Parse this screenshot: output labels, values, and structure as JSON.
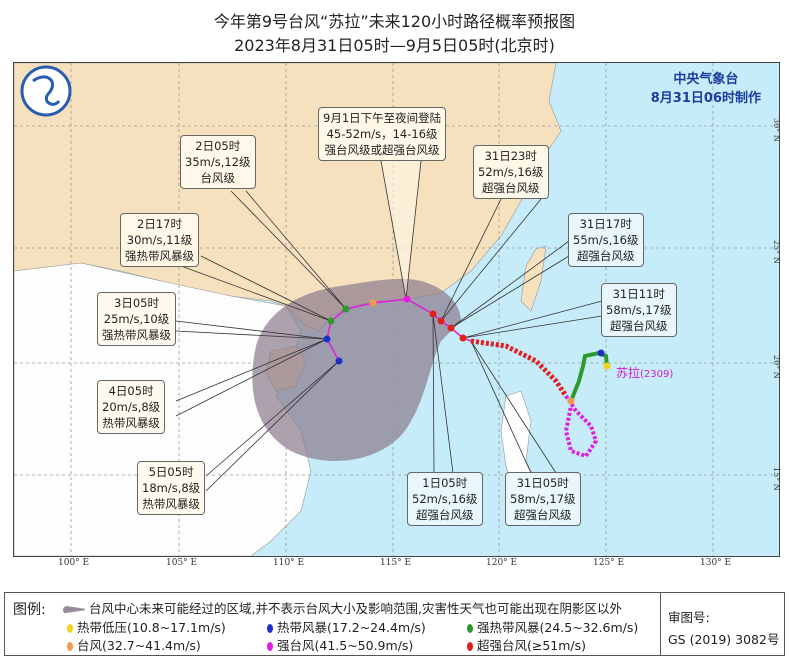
{
  "title": "今年第9号台风“苏拉”未来120小时路径概率预报图",
  "subtitle": "2023年8月31日05时—9月5日05时(北京时)",
  "issuer": {
    "org": "中央气象台",
    "made": "8月31日06时制作"
  },
  "typhoon": {
    "name": "苏拉",
    "code": "(2309)"
  },
  "lon_ticks": [
    "100° E",
    "105° E",
    "110° E",
    "115° E",
    "120° E",
    "125° E",
    "130° E"
  ],
  "lat_ticks": [
    "30° N",
    "25° N",
    "20° N",
    "15° N"
  ],
  "labels": [
    {
      "time": "9月1日下午至夜间登陆",
      "wind": "45-52m/s，14-16级",
      "level": "强台风级或超强台风级"
    },
    {
      "time": "2日05时",
      "wind": "35m/s,12级",
      "level": "台风级"
    },
    {
      "time": "2日17时",
      "wind": "30m/s,11级",
      "level": "强热带风暴级"
    },
    {
      "time": "3日05时",
      "wind": "25m/s,10级",
      "level": "强热带风暴级"
    },
    {
      "time": "4日05时",
      "wind": "20m/s,8级",
      "level": "热带风暴级"
    },
    {
      "time": "5日05时",
      "wind": "18m/s,8级",
      "level": "热带风暴级"
    },
    {
      "time": "31日23时",
      "wind": "52m/s,16级",
      "level": "超强台风级"
    },
    {
      "time": "31日17时",
      "wind": "55m/s,16级",
      "level": "超强台风级"
    },
    {
      "time": "31日11时",
      "wind": "58m/s,17级",
      "level": "超强台风级"
    },
    {
      "time": "1日05时",
      "wind": "52m/s,16级",
      "level": "超强台风级"
    },
    {
      "time": "31日05时",
      "wind": "58m/s,17级",
      "level": "超强台风级"
    }
  ],
  "legend": {
    "title": "图例:",
    "area": "台风中心未来可能经过的区域,并不表示台风大小及影响范围,灾害性天气也可能出现在阴影区以外",
    "items": [
      {
        "label": "热带低压(10.8~17.1m/s)",
        "color": "#f2d21b"
      },
      {
        "label": "热带风暴(17.2~24.4m/s)",
        "color": "#1f2fc8"
      },
      {
        "label": "强热带风暴(24.5~32.6m/s)",
        "color": "#2e9a2e"
      },
      {
        "label": "台风(32.7~41.4m/s)",
        "color": "#f39a4c"
      },
      {
        "label": "强台风(41.5~50.9m/s)",
        "color": "#e01ee0"
      },
      {
        "label": "超强台风(≥51m/s)",
        "color": "#e0201e"
      }
    ]
  },
  "approval": {
    "label": "审图号:",
    "number": "GS (2019) 3082号"
  }
}
